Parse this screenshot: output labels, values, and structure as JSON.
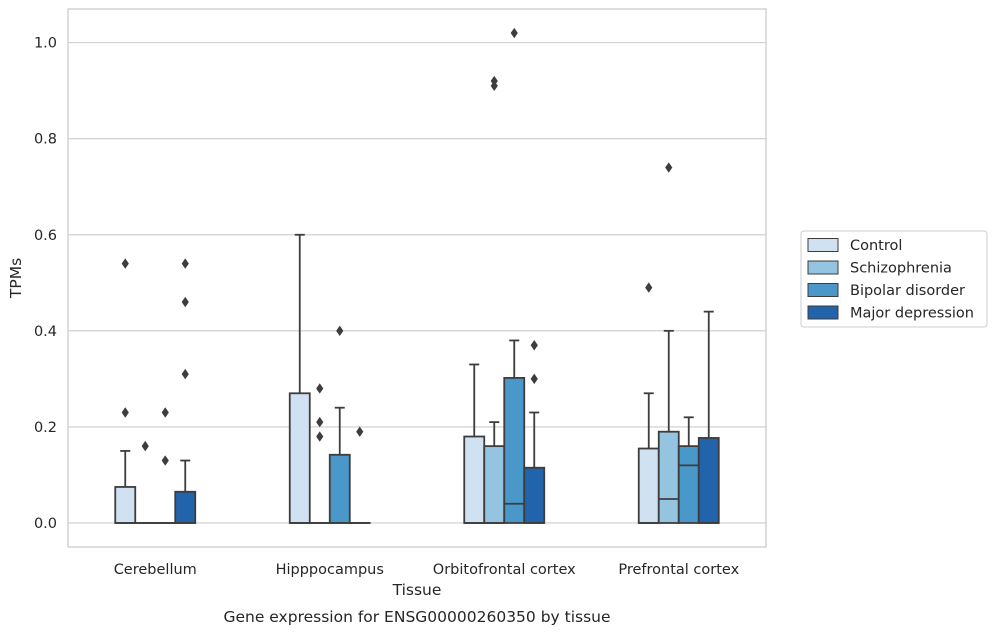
{
  "chart_data": {
    "type": "box",
    "xlabel": "Tissue",
    "ylabel": "TPMs",
    "caption": "Gene expression for ENSG00000260350 by tissue",
    "ylim": [
      -0.05,
      1.07
    ],
    "yticks": [
      "0.0",
      "0.2",
      "0.4",
      "0.6",
      "0.8",
      "1.0"
    ],
    "ytick_values": [
      0.0,
      0.2,
      0.4,
      0.6,
      0.8,
      1.0
    ],
    "grid": "horizontal",
    "legend_position": "right",
    "categories": [
      "Cerebellum",
      "Hipppocampus",
      "Orbitofrontal cortex",
      "Prefrontal cortex"
    ],
    "series": [
      {
        "name": "Control",
        "color": "#d0e1f2",
        "boxes": [
          {
            "q1": 0.0,
            "median": 0.0,
            "q3": 0.075,
            "whisker_low": 0.0,
            "whisker_high": 0.15,
            "outliers": [
              0.23,
              0.54
            ]
          },
          {
            "q1": 0.0,
            "median": 0.0,
            "q3": 0.27,
            "whisker_low": 0.0,
            "whisker_high": 0.6,
            "outliers": []
          },
          {
            "q1": 0.0,
            "median": 0.0,
            "q3": 0.18,
            "whisker_low": 0.0,
            "whisker_high": 0.33,
            "outliers": []
          },
          {
            "q1": 0.0,
            "median": 0.0,
            "q3": 0.155,
            "whisker_low": 0.0,
            "whisker_high": 0.27,
            "outliers": [
              0.49
            ]
          }
        ]
      },
      {
        "name": "Schizophrenia",
        "color": "#94c4df",
        "boxes": [
          {
            "q1": 0.0,
            "median": 0.0,
            "q3": 0.0,
            "whisker_low": 0.0,
            "whisker_high": 0.0,
            "outliers": [
              0.16
            ]
          },
          {
            "q1": 0.0,
            "median": 0.0,
            "q3": 0.0,
            "whisker_low": 0.0,
            "whisker_high": 0.0,
            "outliers": [
              0.18,
              0.21,
              0.28
            ]
          },
          {
            "q1": 0.0,
            "median": 0.0,
            "q3": 0.16,
            "whisker_low": 0.0,
            "whisker_high": 0.21,
            "outliers": [
              0.91,
              0.92
            ]
          },
          {
            "q1": 0.0,
            "median": 0.05,
            "q3": 0.19,
            "whisker_low": 0.0,
            "whisker_high": 0.4,
            "outliers": [
              0.74
            ]
          }
        ]
      },
      {
        "name": "Bipolar disorder",
        "color": "#4a98c9",
        "boxes": [
          {
            "q1": 0.0,
            "median": 0.0,
            "q3": 0.0,
            "whisker_low": 0.0,
            "whisker_high": 0.0,
            "outliers": [
              0.13,
              0.23
            ]
          },
          {
            "q1": 0.0,
            "median": 0.0,
            "q3": 0.142,
            "whisker_low": 0.0,
            "whisker_high": 0.24,
            "outliers": [
              0.4
            ]
          },
          {
            "q1": 0.0,
            "median": 0.04,
            "q3": 0.302,
            "whisker_low": 0.0,
            "whisker_high": 0.38,
            "outliers": [
              1.02
            ]
          },
          {
            "q1": 0.0,
            "median": 0.12,
            "q3": 0.16,
            "whisker_low": 0.0,
            "whisker_high": 0.22,
            "outliers": []
          }
        ]
      },
      {
        "name": "Major depression",
        "color": "#2164ab",
        "boxes": [
          {
            "q1": 0.0,
            "median": 0.0,
            "q3": 0.065,
            "whisker_low": 0.0,
            "whisker_high": 0.13,
            "outliers": [
              0.31,
              0.46,
              0.54
            ]
          },
          {
            "q1": 0.0,
            "median": 0.0,
            "q3": 0.0,
            "whisker_low": 0.0,
            "whisker_high": 0.0,
            "outliers": [
              0.19
            ]
          },
          {
            "q1": 0.0,
            "median": 0.0,
            "q3": 0.115,
            "whisker_low": 0.0,
            "whisker_high": 0.23,
            "outliers": [
              0.3,
              0.37
            ]
          },
          {
            "q1": 0.0,
            "median": 0.0,
            "q3": 0.177,
            "whisker_low": 0.0,
            "whisker_high": 0.44,
            "outliers": []
          }
        ]
      }
    ]
  }
}
